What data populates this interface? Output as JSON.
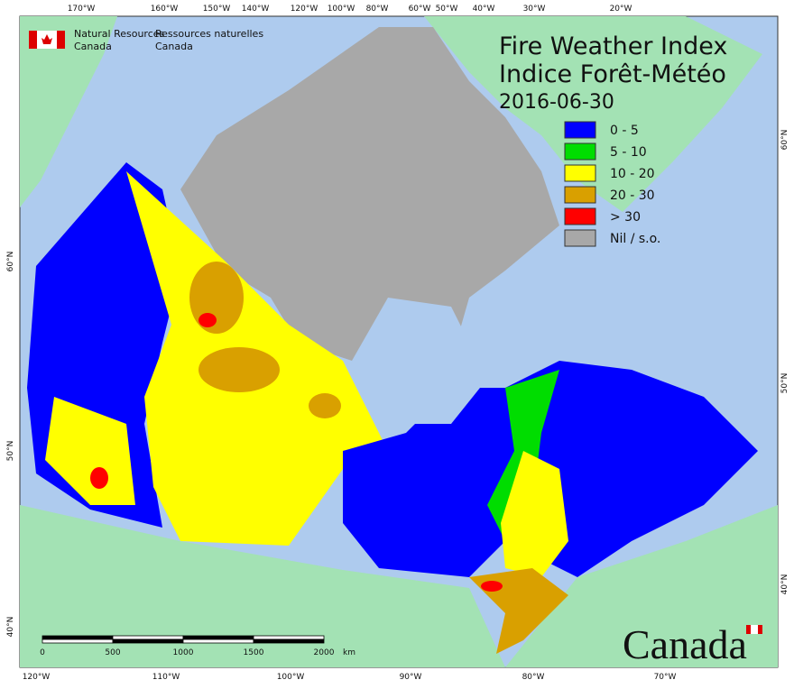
{
  "agency": {
    "english": [
      "Natural Resources",
      "Canada"
    ],
    "french": [
      "Ressources naturelles",
      "Canada"
    ]
  },
  "title": "Fire Weather Index",
  "subtitle": "Indice Forêt-Météo",
  "date": "2016-06-30",
  "legend": [
    {
      "label": "0 - 5",
      "color": "#0000ff"
    },
    {
      "label": "5 - 10",
      "color": "#00dd00"
    },
    {
      "label": "10 - 20",
      "color": "#ffff00"
    },
    {
      "label": "20 - 30",
      "color": "#d9a000"
    },
    {
      "label": "> 30",
      "color": "#ff0000"
    },
    {
      "label": "Nil / s.o.",
      "color": "#a8a8a8"
    }
  ],
  "graticule": {
    "top": [
      "170°W",
      "160°W",
      "150°W",
      "140°W",
      "120°W",
      "100°W",
      "80°W",
      "60°W",
      "50°W",
      "40°W",
      "30°W",
      "20°W"
    ],
    "bottom": [
      "120°W",
      "110°W",
      "100°W",
      "90°W",
      "80°W",
      "70°W"
    ],
    "left": [
      "60°N",
      "50°N",
      "40°N"
    ],
    "right": [
      "60°N",
      "50°N",
      "40°N"
    ]
  },
  "scale_bar": [
    "0",
    "500",
    "1000",
    "1500",
    "2000",
    "km"
  ],
  "wordmark": "Canada"
}
